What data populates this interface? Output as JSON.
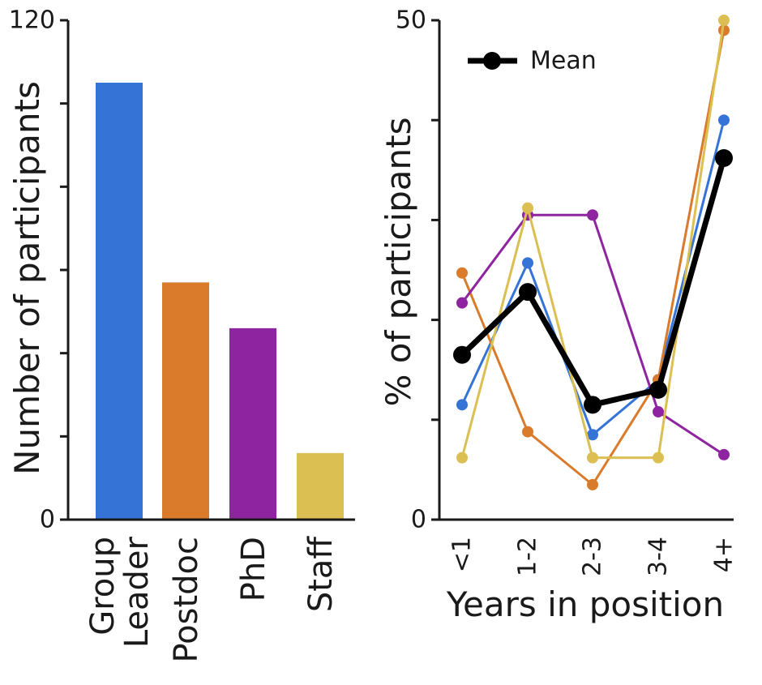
{
  "chart_data": [
    {
      "type": "bar",
      "categories": [
        "Group Leader",
        "Postdoc",
        "PhD",
        "Staff"
      ],
      "category_lines": [
        [
          "Group",
          "Leader"
        ],
        [
          "Postdoc"
        ],
        [
          "PhD"
        ],
        [
          "Staff"
        ]
      ],
      "values": [
        105,
        57,
        46,
        16
      ],
      "colors": [
        "#3574d6",
        "#d97b2b",
        "#8e24a0",
        "#dcbf52"
      ],
      "title": "",
      "xlabel": "",
      "ylabel": "Number of participants",
      "ylim": [
        0,
        120
      ],
      "yticks": [
        0,
        20,
        40,
        60,
        80,
        100,
        120
      ],
      "ytick_labels": [
        "0",
        "",
        "",
        "",
        "",
        "",
        "120"
      ]
    },
    {
      "type": "line",
      "categories": [
        "<1",
        "1-2",
        "2-3",
        "3-4",
        "4+"
      ],
      "series": [
        {
          "name": "Group Leader",
          "color": "#3574d6",
          "values": [
            11.5,
            25.7,
            8.5,
            14,
            40
          ]
        },
        {
          "name": "Postdoc",
          "color": "#d97b2b",
          "values": [
            24.7,
            8.8,
            3.5,
            14,
            49
          ]
        },
        {
          "name": "PhD",
          "color": "#8e24a0",
          "values": [
            21.7,
            30.5,
            30.5,
            10.8,
            6.5
          ]
        },
        {
          "name": "Staff",
          "color": "#dcbf52",
          "values": [
            6.2,
            31.2,
            6.2,
            6.2,
            50
          ]
        },
        {
          "name": "Mean",
          "color": "#000000",
          "values": [
            16.5,
            22.8,
            11.5,
            13,
            36.2
          ]
        }
      ],
      "legend": {
        "label": "Mean",
        "placement": "top-left"
      },
      "title": "",
      "xlabel": "Years in position",
      "ylabel": "% of participants",
      "ylim": [
        0,
        50
      ],
      "yticks": [
        0,
        10,
        20,
        30,
        40,
        50
      ],
      "ytick_labels": [
        "0",
        "",
        "",
        "",
        "",
        "50"
      ]
    }
  ]
}
